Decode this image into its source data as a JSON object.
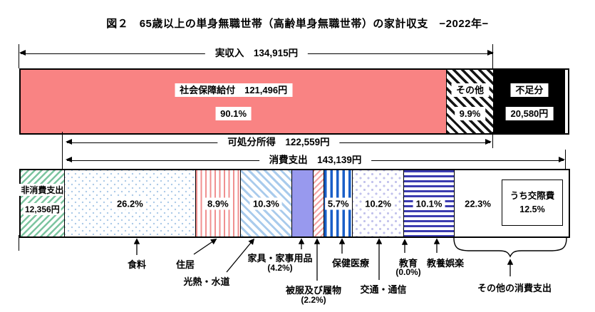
{
  "title": "図２　65歳以上の単身無職世帯（高齢単身無職世帯）の家計収支　−2022年−",
  "arrows": {
    "income": "実収入　134,915円",
    "disposable": "可処分所得　122,559円",
    "consumption": "消費支出　143,139円"
  },
  "colors": {
    "salmon": "#F98383",
    "green": "#7CC4A0",
    "bluedot": "#AECBE8",
    "pinkstripe": "#F09090",
    "lbstripe": "#A9CBEC",
    "purple": "#9899EE",
    "pinkdiag": "#F4A2A2",
    "bluestripe": "#1A5FC8",
    "lavender": "#C2C2EC",
    "navystripe": "#3B3BB0"
  },
  "below_labels": {
    "food": "食料",
    "housing": "住居",
    "utilities": "光熱・水道",
    "furniture": "家具・家事用品",
    "furniture_pct": "(4.2%)",
    "clothing": "被服及び履物",
    "clothing_pct": "(2.2%)",
    "medical": "保健医療",
    "transport": "交通・通信",
    "education": "教育",
    "education_pct": "(0.0%)",
    "recreation": "教養娯楽",
    "other_consumption": "その他の消費支出"
  },
  "chart_data": {
    "type": "bar",
    "title": "図２　65歳以上の単身無職世帯（高齢単身無職世帯）の家計収支　−2022年−",
    "year": "2022",
    "currency_unit": "円",
    "income_bar": {
      "total": {
        "label": "実収入",
        "value": 134915
      },
      "segments": [
        {
          "label": "社会保障給付",
          "value": 121496,
          "pct": 90.1,
          "display": [
            "社会保障給付　121,496円",
            "90.1%"
          ],
          "pattern": "solid-salmon"
        },
        {
          "label": "その他",
          "pct": 9.9,
          "display": [
            "その他",
            "9.9%"
          ],
          "pattern": "hatch-black"
        },
        {
          "label": "不足分",
          "value": 20580,
          "display": [
            "不足分",
            "20,580円"
          ],
          "pattern": "solid-black",
          "outside_income": true
        }
      ]
    },
    "disposable_income": {
      "label": "可処分所得",
      "value": 122559
    },
    "expenditure_bar": {
      "non_consumption": {
        "label": "非消費支出",
        "value": 12356,
        "display": [
          "非消費支出",
          "12,356円"
        ],
        "pattern": "hatch-green"
      },
      "consumption_total": {
        "label": "消費支出",
        "value": 143139
      },
      "breakdown": [
        {
          "label": "食料",
          "pct": 26.2,
          "pattern": "dots-blue"
        },
        {
          "label": "住居",
          "pct": 8.9,
          "pattern": "vstripe-pink"
        },
        {
          "label": "光熱・水道",
          "pct": 10.3,
          "pattern": "diag-lightblue"
        },
        {
          "label": "家具・家事用品",
          "pct": 4.2,
          "pattern": "solid-purple"
        },
        {
          "label": "被服及び履物",
          "pct": 2.2,
          "pattern": "diag-pink"
        },
        {
          "label": "保健医療",
          "pct": 5.7,
          "pattern": "vstripe-blue"
        },
        {
          "label": "交通・通信",
          "pct": 10.2,
          "pattern": "texture-lavender"
        },
        {
          "label": "教育",
          "pct": 0.0,
          "pattern": "none"
        },
        {
          "label": "教養娯楽",
          "pct": 10.1,
          "pattern": "hstripe-navy"
        },
        {
          "label": "その他の消費支出",
          "pct": 22.3,
          "pattern": "plain",
          "note": {
            "label": "うち交際費",
            "pct": "12.5%"
          }
        }
      ],
      "legend_position": "below",
      "grid": false
    }
  }
}
